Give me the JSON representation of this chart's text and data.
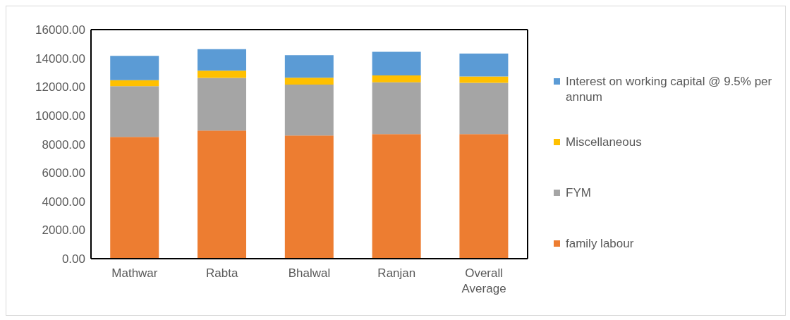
{
  "chart_data": {
    "type": "bar",
    "stacked": true,
    "categories": [
      "Mathwar",
      "Rabta",
      "Bhalwal",
      "Ranjan",
      "Overall Average"
    ],
    "series": [
      {
        "name": "family labour",
        "color": "#ed7d31",
        "values": [
          8500,
          8950,
          8600,
          8700,
          8700
        ]
      },
      {
        "name": "FYM",
        "color": "#a5a5a5",
        "values": [
          3550,
          3680,
          3560,
          3620,
          3580
        ]
      },
      {
        "name": "Miscellaneous",
        "color": "#ffc000",
        "values": [
          420,
          500,
          480,
          480,
          450
        ]
      },
      {
        "name": "Interest on working capital @ 9.5% per annum",
        "color": "#5b9bd5",
        "values": [
          1700,
          1500,
          1570,
          1650,
          1600
        ]
      }
    ],
    "ylim": [
      0,
      16000
    ],
    "yticks": [
      {
        "value": 0,
        "label": "0.00"
      },
      {
        "value": 2000,
        "label": "2000.00"
      },
      {
        "value": 4000,
        "label": "4000.00"
      },
      {
        "value": 6000,
        "label": "6000.00"
      },
      {
        "value": 8000,
        "label": "8000.00"
      },
      {
        "value": 10000,
        "label": "10000.00"
      },
      {
        "value": 12000,
        "label": "12000.00"
      },
      {
        "value": 14000,
        "label": "14000.00"
      },
      {
        "value": 16000,
        "label": "16000.00"
      }
    ],
    "grid": false,
    "legend": "right"
  }
}
